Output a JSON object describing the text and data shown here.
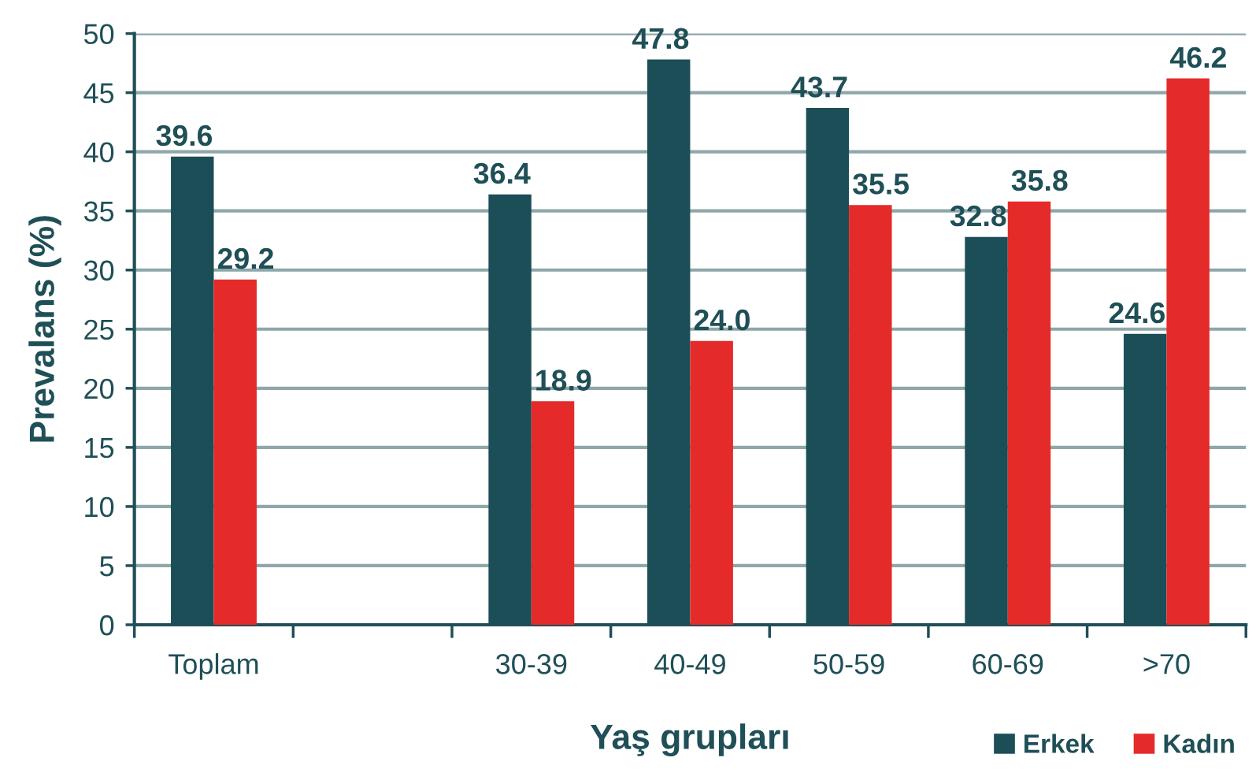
{
  "chart_data": {
    "type": "bar",
    "xlabel": "Yaş grupları",
    "ylabel": "Prevalans (%)",
    "categories": [
      "Toplam",
      null,
      "30-39",
      "40-49",
      "50-59",
      "60-69",
      ">70"
    ],
    "series": [
      {
        "name": "Erkek",
        "color": "#1b4e56",
        "values": [
          39.6,
          null,
          36.4,
          47.8,
          43.7,
          32.8,
          24.6
        ],
        "value_labels": [
          "39.6",
          null,
          "36.4",
          "47.8",
          "43.7",
          "32.8",
          "24.6"
        ]
      },
      {
        "name": "Kadın",
        "color": "#e52a2a",
        "values": [
          29.2,
          null,
          18.9,
          24.0,
          35.5,
          35.8,
          46.2
        ],
        "value_labels": [
          "29.2",
          null,
          "18.9",
          "24.0",
          "35.5",
          "35.8",
          "46.2"
        ]
      }
    ],
    "ylim": [
      0,
      50
    ],
    "yticks": [
      0,
      5,
      10,
      15,
      20,
      25,
      30,
      35,
      40,
      45,
      50
    ],
    "grid": "y",
    "legend": "bottom right"
  }
}
